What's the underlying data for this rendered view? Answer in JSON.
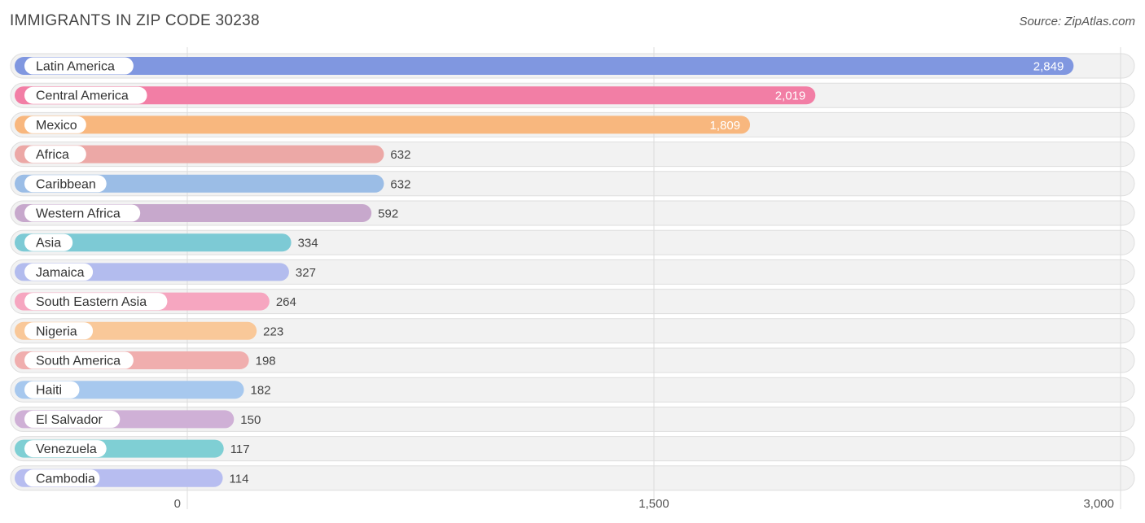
{
  "title": "IMMIGRANTS IN ZIP CODE 30238",
  "source": "Source: ZipAtlas.com",
  "chart_data": {
    "type": "bar",
    "orientation": "horizontal",
    "title": "IMMIGRANTS IN ZIP CODE 30238",
    "categories": [
      "Latin America",
      "Central America",
      "Mexico",
      "Africa",
      "Caribbean",
      "Western Africa",
      "Asia",
      "Jamaica",
      "South Eastern Asia",
      "Nigeria",
      "South America",
      "Haiti",
      "El Salvador",
      "Venezuela",
      "Cambodia"
    ],
    "values": [
      2849,
      2019,
      1809,
      632,
      632,
      592,
      334,
      327,
      264,
      223,
      198,
      182,
      150,
      117,
      114
    ],
    "value_labels": [
      "2,849",
      "2,019",
      "1,809",
      "632",
      "632",
      "592",
      "334",
      "327",
      "264",
      "223",
      "198",
      "182",
      "150",
      "117",
      "114"
    ],
    "colors": [
      "#8097e0",
      "#f27ea5",
      "#f8b77e",
      "#eca8a6",
      "#9bbde6",
      "#c7a8cc",
      "#7dcad5",
      "#b3bcee",
      "#f6a6c0",
      "#f9c899",
      "#f0aeae",
      "#a7c8ee",
      "#cfb0d6",
      "#7fcfd4",
      "#b7bdf0"
    ],
    "xlim": [
      0,
      3000
    ],
    "xticks": [
      0,
      1500,
      3000
    ],
    "xtick_labels": [
      "0",
      "1,500",
      "3,000"
    ],
    "grid": true
  }
}
